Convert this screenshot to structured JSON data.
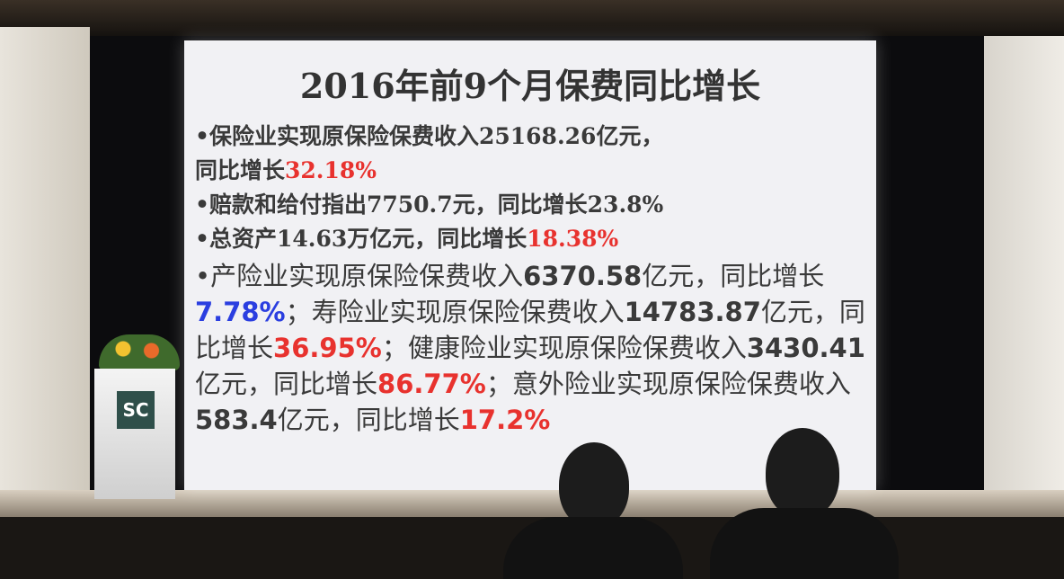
{
  "slide": {
    "title": "2016年前9个月保费同比增长",
    "bullets": [
      {
        "segments": [
          {
            "text": "•保险业实现原保险保费收入25168.26亿元，"
          },
          {
            "text": "同比增长"
          },
          {
            "text": "32.18%",
            "color": "#e8322e"
          }
        ]
      },
      {
        "segments": [
          {
            "text": "•赔款和给付指出7750.7元，同比增长23.8%"
          }
        ]
      },
      {
        "segments": [
          {
            "text": "•总资产14.63万亿元，同比增长"
          },
          {
            "text": "18.38%",
            "color": "#e8322e"
          }
        ]
      },
      {
        "segments": [
          {
            "text": "•产险业实现原保险保费收入"
          },
          {
            "text": "6370.58",
            "bold": true
          },
          {
            "text": "亿元，同比增长"
          },
          {
            "text": "7.78%",
            "color": "#2a3ee0",
            "bold": true
          },
          {
            "text": "；寿险业实现原保险保费收入"
          },
          {
            "text": "14783.87",
            "bold": true
          },
          {
            "text": "亿元，同比增长"
          },
          {
            "text": "36.95%",
            "color": "#e8322e",
            "bold": true
          },
          {
            "text": "；健康险业实现原保险保费收入"
          },
          {
            "text": "3430.41",
            "bold": true
          },
          {
            "text": "亿元，同比增长"
          },
          {
            "text": "86.77%",
            "color": "#e8322e",
            "bold": true
          },
          {
            "text": "；意外险业实现原保险保费收入"
          },
          {
            "text": "583.4",
            "bold": true
          },
          {
            "text": "亿元，同比增长"
          },
          {
            "text": "17.2%",
            "color": "#e8322e",
            "bold": true
          }
        ]
      }
    ]
  },
  "podium": {
    "logo": "SC"
  }
}
